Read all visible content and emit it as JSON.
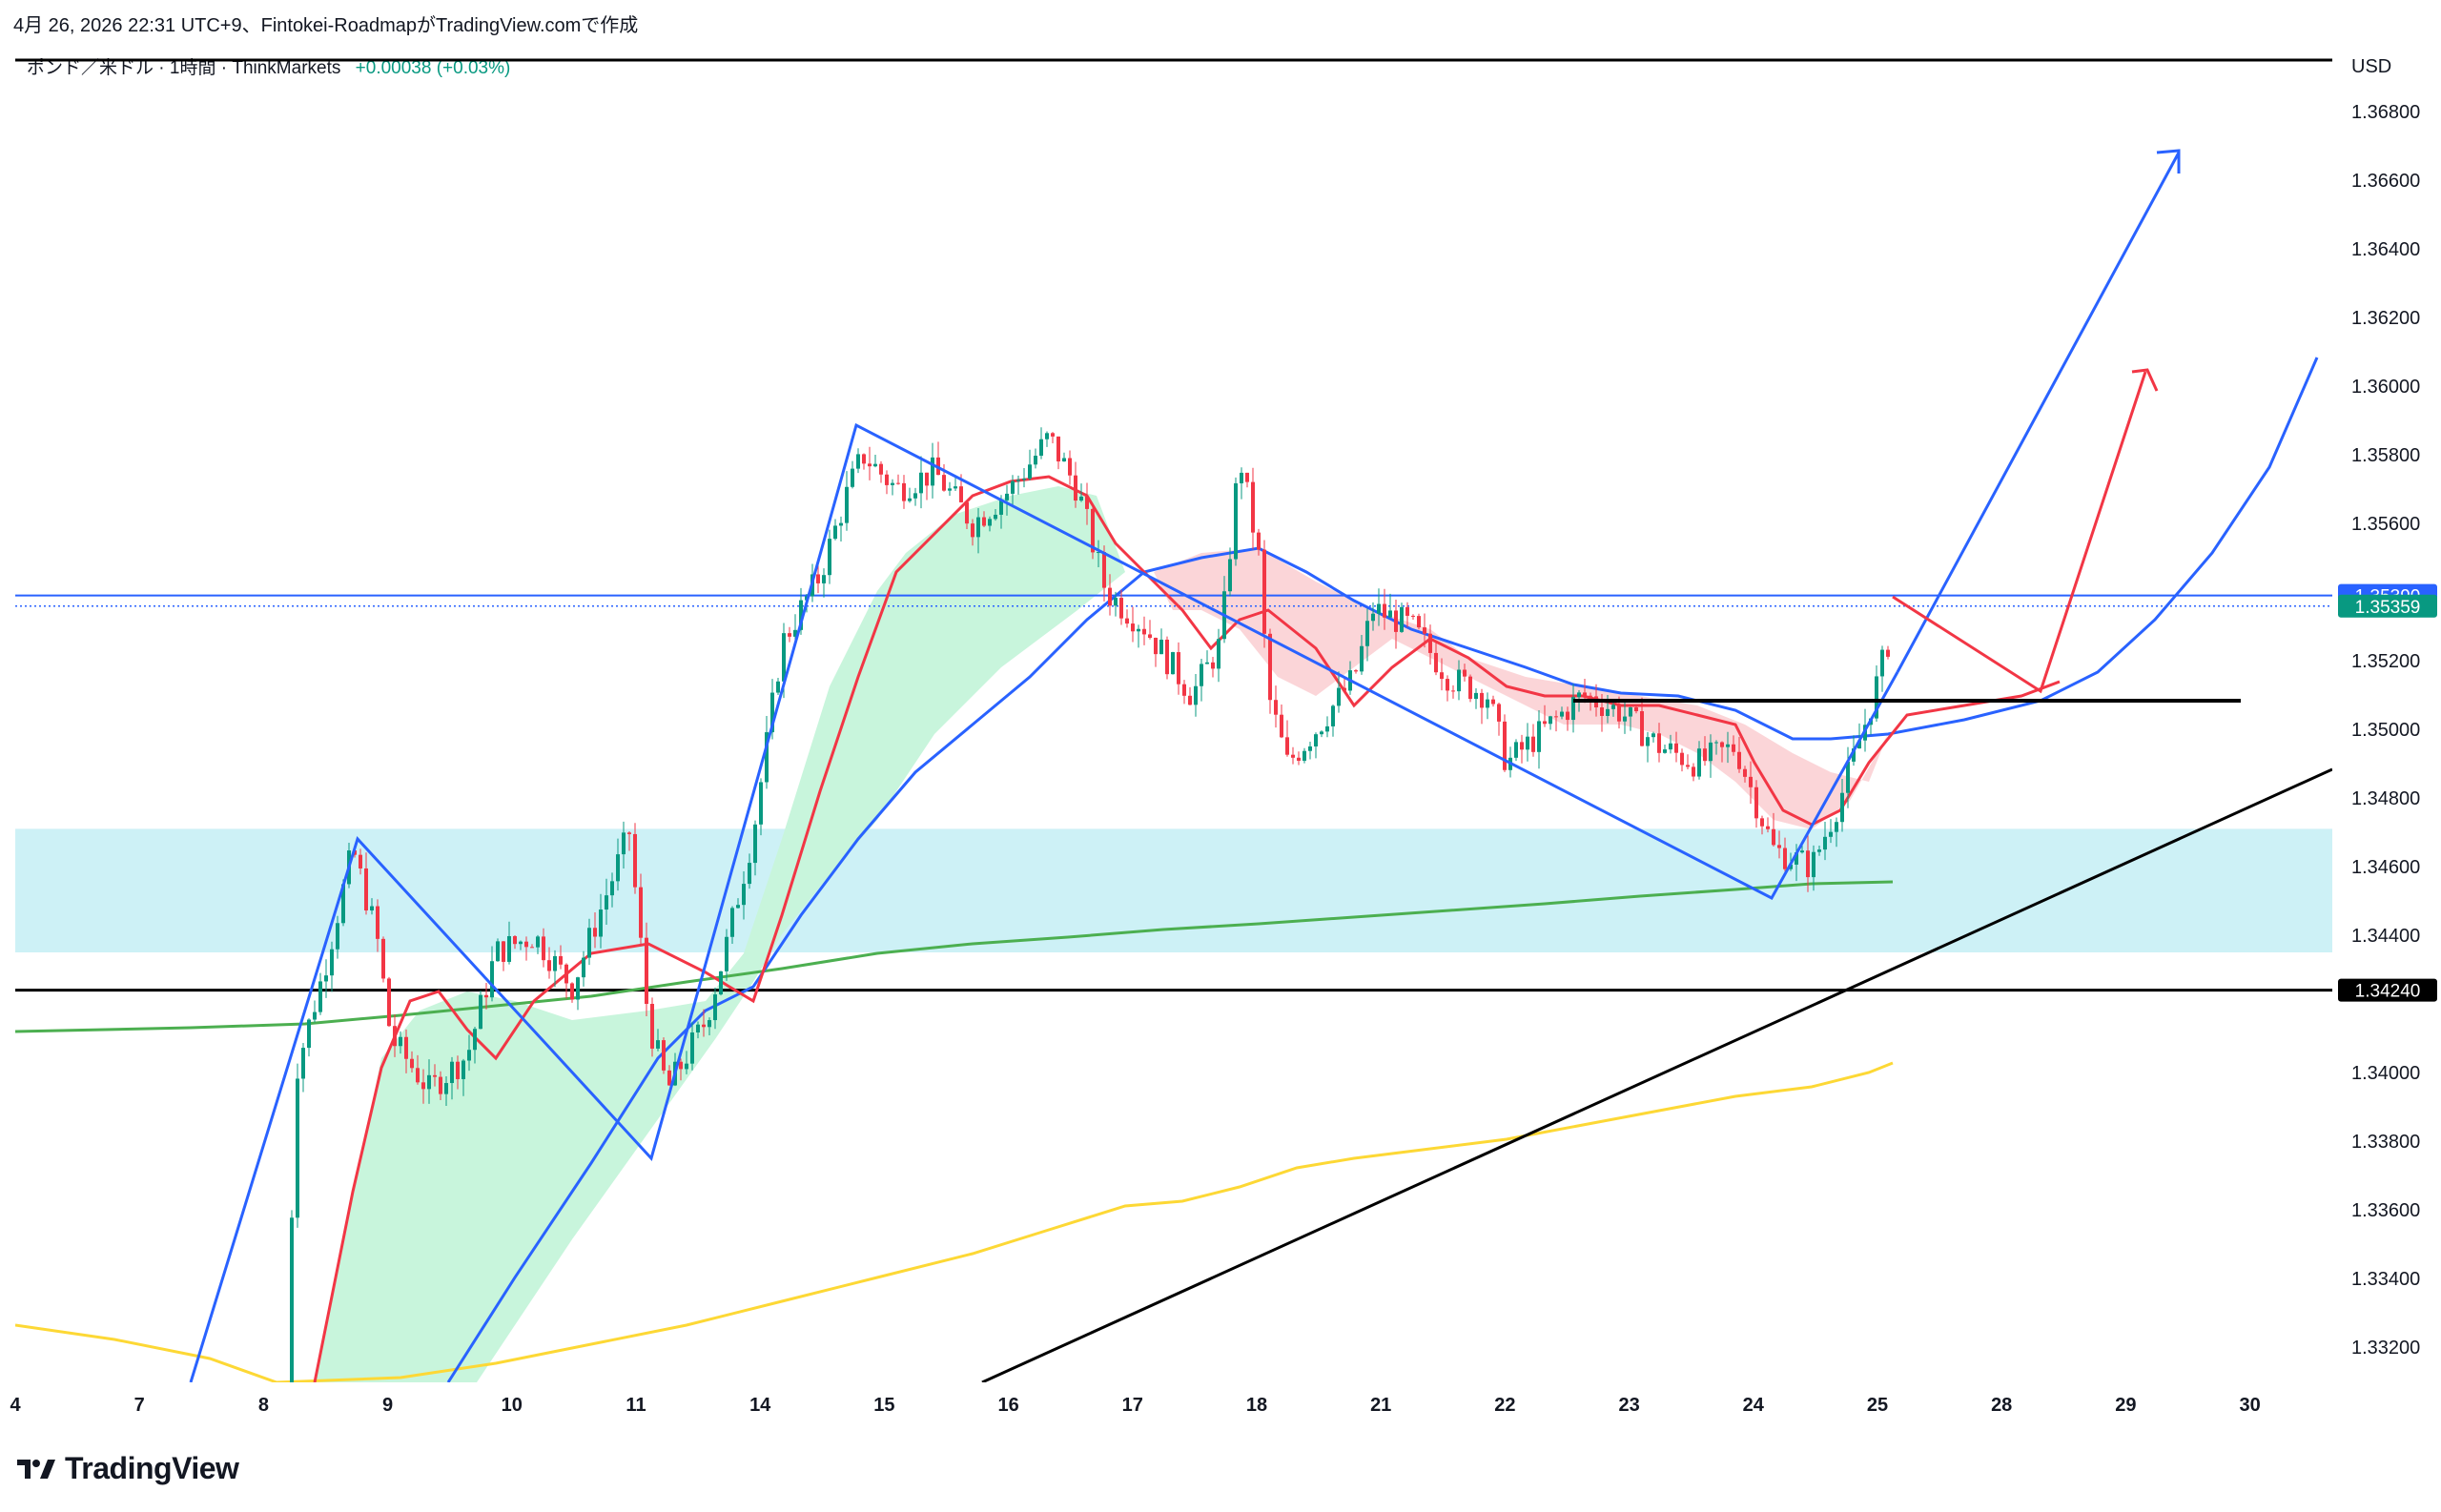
{
  "caption": "4月 26, 2026 22:31 UTC+9、Fintokei-RoadmapがTradingView.comで作成",
  "symbol": {
    "name": "ポンド／米ドル · 1時間 · ThinkMarkets",
    "change": "+0.00038 (+0.03%)"
  },
  "brand": {
    "name": "TradingView"
  },
  "colors": {
    "up": "#089981",
    "down": "#f23645",
    "blue": "#2962ff",
    "red": "#f23645",
    "green_ma": "#4caf50",
    "yellow_ma": "#fdd835",
    "zone": "#cdf1f6",
    "cloud_up": "#c8f5dc",
    "cloud_down": "#fbd5d8"
  },
  "chart_data": {
    "type": "candlestick",
    "currency": "USD",
    "y_ticks": [
      "1.36800",
      "1.36600",
      "1.36400",
      "1.36200",
      "1.36000",
      "1.35800",
      "1.35600",
      "1.35200",
      "1.35000",
      "1.34800",
      "1.34600",
      "1.34400",
      "1.34000",
      "1.33800",
      "1.33600",
      "1.33400",
      "1.33200"
    ],
    "x_ticks": [
      "4",
      "7",
      "8",
      "9",
      "10",
      "11",
      "14",
      "15",
      "16",
      "17",
      "18",
      "21",
      "22",
      "23",
      "24",
      "25",
      "28",
      "29",
      "30"
    ],
    "price_badges": [
      {
        "label": "1.35390",
        "price": 1.3539,
        "color": "#2962ff"
      },
      {
        "label": "1.35359",
        "price": 1.35359,
        "color": "#089981"
      },
      {
        "label": "1.34240",
        "price": 1.3424,
        "color": "#000000"
      }
    ],
    "zone": {
      "from": 1.3435,
      "to": 1.3471
    },
    "horizontal_lines": [
      {
        "price": 1.3539,
        "color": "#2962ff",
        "style": "solid"
      },
      {
        "price": 1.35359,
        "color": "#2962ff",
        "style": "dotted"
      },
      {
        "price": 1.3424,
        "color": "#000000",
        "style": "solid"
      }
    ]
  }
}
